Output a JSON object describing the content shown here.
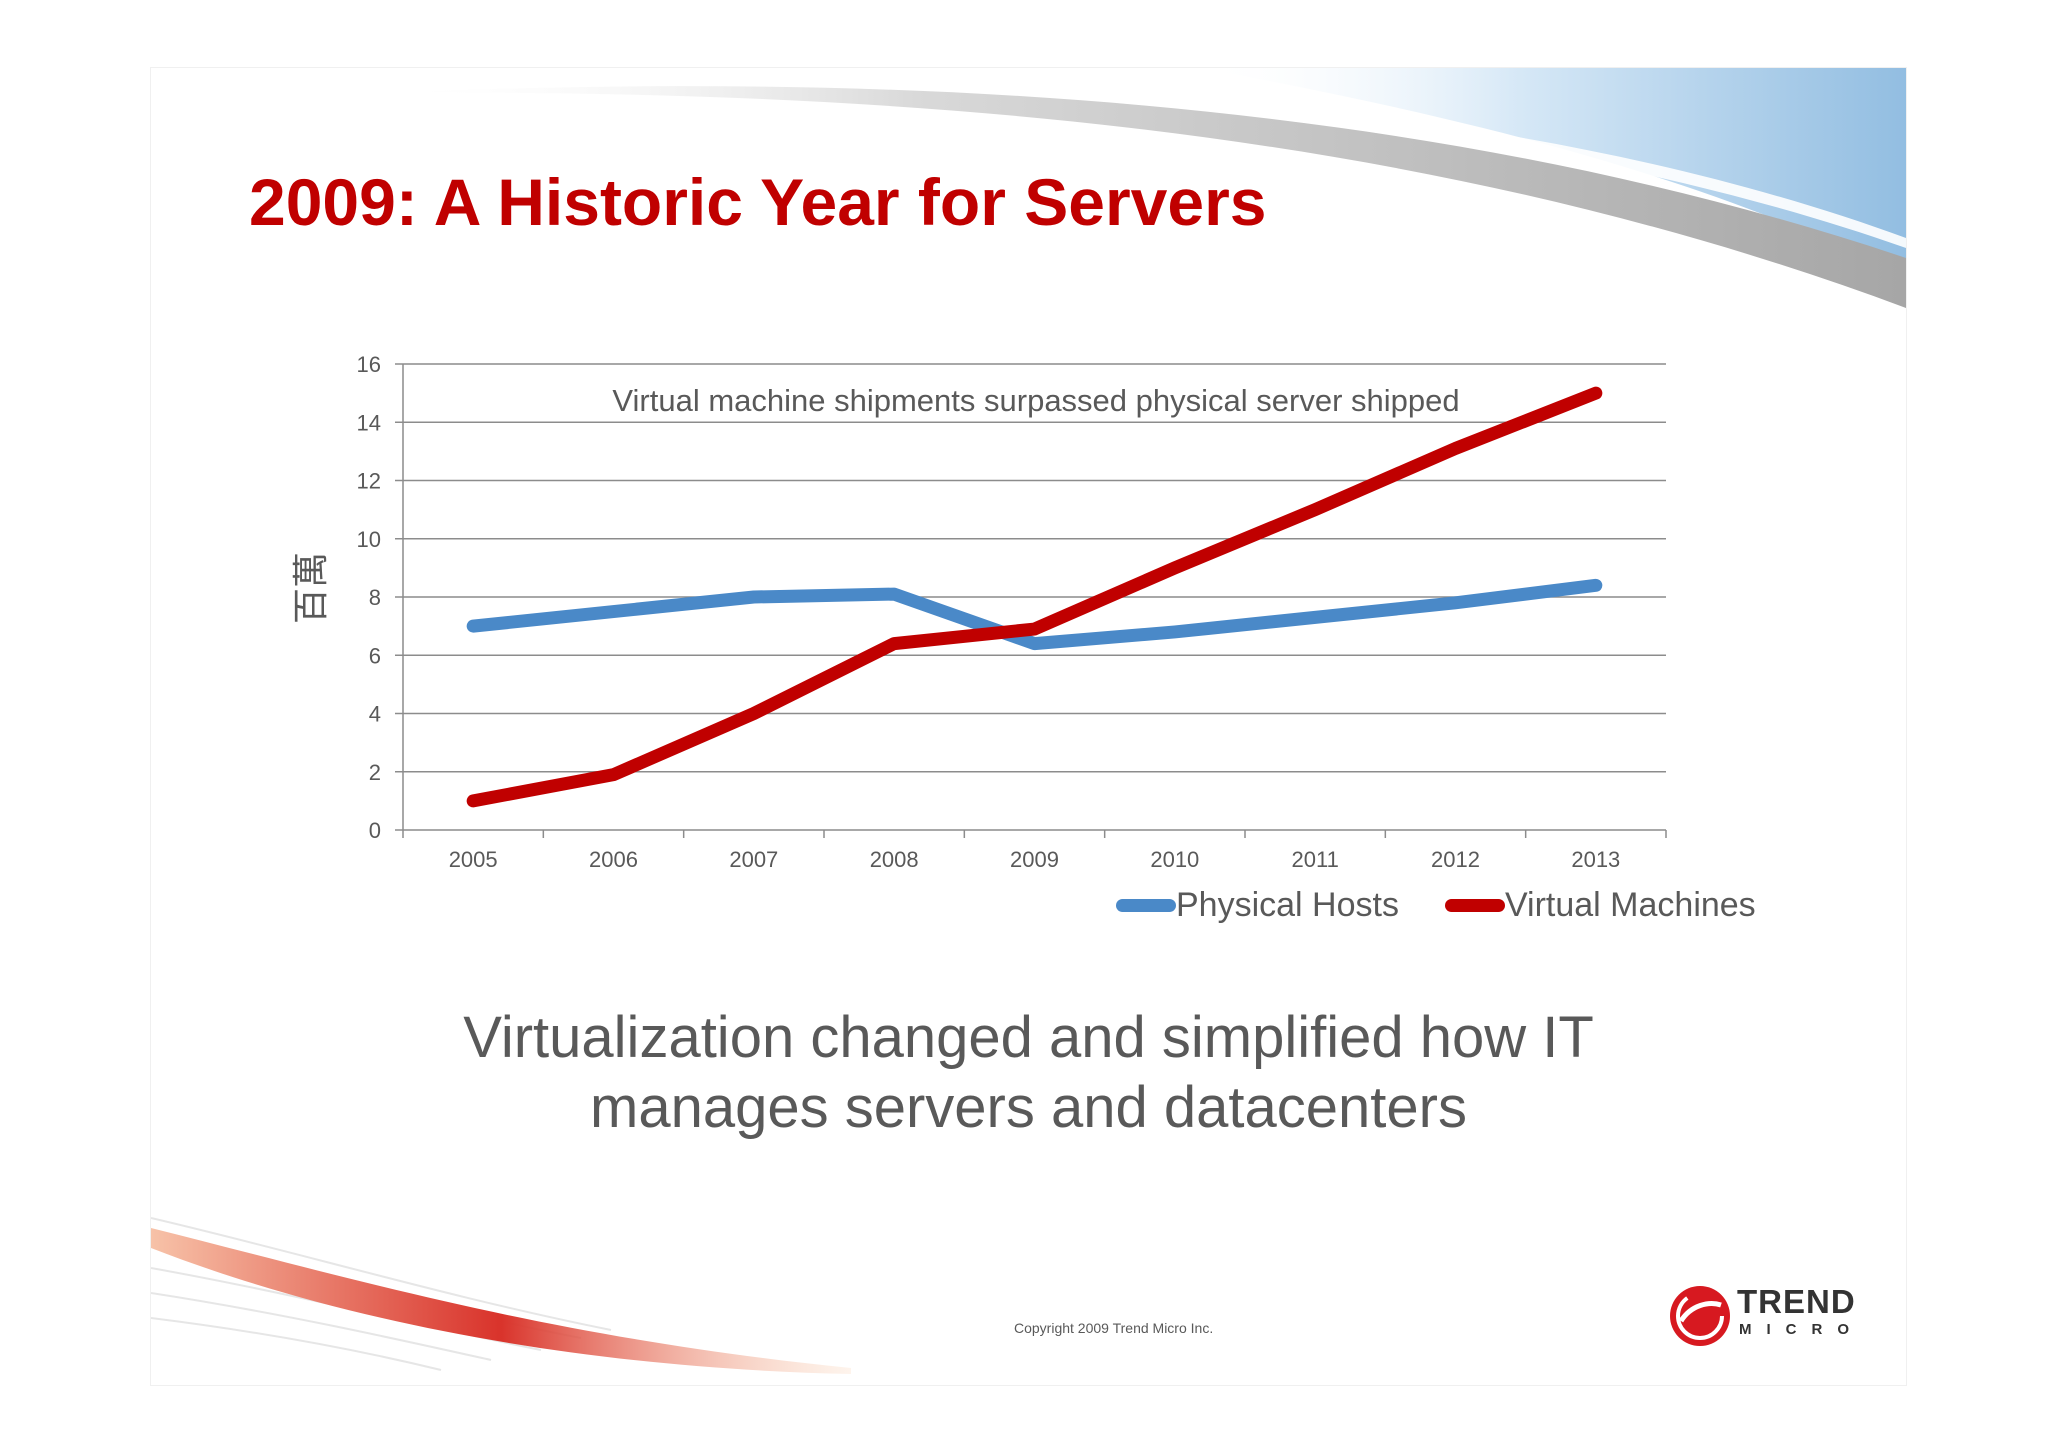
{
  "slide": {
    "title": "2009: A Historic Year for Servers",
    "subtitle_lines": [
      "Virtualization changed and simplified how IT",
      "manages servers and datacenters"
    ],
    "copyright": "Copyright 2009   Trend Micro Inc.",
    "logo": {
      "line1": "TREND",
      "line2": "MICRO",
      "icon": "trend-micro-logo-icon"
    },
    "colors": {
      "title": "#c00000",
      "text": "#595959"
    }
  },
  "chart_data": {
    "type": "line",
    "categories": [
      "2005",
      "2006",
      "2007",
      "2008",
      "2009",
      "2010",
      "2011",
      "2012",
      "2013"
    ],
    "series": [
      {
        "name": "Physical Hosts",
        "color": "#4a89c8",
        "values": [
          7.0,
          7.5,
          8.0,
          8.1,
          6.4,
          6.8,
          7.3,
          7.8,
          8.4
        ]
      },
      {
        "name": "Virtual Machines",
        "color": "#c00000",
        "values": [
          1.0,
          1.9,
          4.0,
          6.4,
          6.9,
          9.0,
          11.0,
          13.1,
          15.0
        ]
      }
    ],
    "ylabel": "百萬",
    "ylim": [
      0,
      16
    ],
    "yticks": [
      "0",
      "2",
      "4",
      "6",
      "8",
      "10",
      "12",
      "14",
      "16"
    ],
    "annotation": "Virtual machine shipments surpassed physical server shipped",
    "grid": true,
    "legend_position": "bottom-right"
  }
}
